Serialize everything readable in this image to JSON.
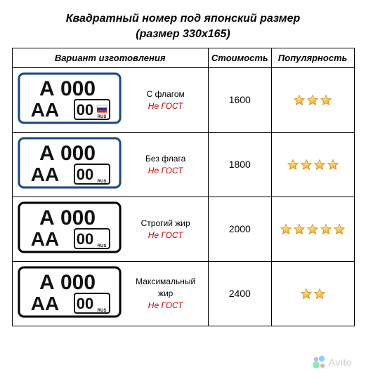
{
  "header": {
    "title": "Квадратный номер под японский размер",
    "subtitle": "(размер 330х165)"
  },
  "columns": {
    "variant": "Вариант изготовления",
    "cost": "Стоимость",
    "popularity": "Популярность"
  },
  "plate_template": {
    "top_line": "А 000",
    "bottom_left": "АА",
    "region_code": "00",
    "region_label": "RUS"
  },
  "rows": [
    {
      "desc": "С флагом",
      "sub": "Не ГОСТ",
      "cost": "1600",
      "stars": 3,
      "font_weight": 700,
      "has_flag": true,
      "border": "#1a4a8a",
      "inner_bg": "#ffffff"
    },
    {
      "desc": "Без флага",
      "sub": "Не ГОСТ",
      "cost": "1800",
      "stars": 4,
      "font_weight": 700,
      "has_flag": false,
      "border": "#1a4a8a",
      "inner_bg": "#ffffff"
    },
    {
      "desc": "Строгий жир",
      "sub": "Не ГОСТ",
      "cost": "2000",
      "stars": 5,
      "font_weight": 900,
      "has_flag": false,
      "border": "#000000",
      "inner_bg": "#ffffff"
    },
    {
      "desc": "Максимальный жир",
      "sub": "Не ГОСТ",
      "cost": "2400",
      "stars": 2,
      "font_weight": 900,
      "has_flag": false,
      "border": "#000000",
      "inner_bg": "#ffffff"
    }
  ],
  "star_style": {
    "fill": "#f5a623",
    "stroke": "#c77b00",
    "size": 18
  },
  "watermark": {
    "text": "Avito",
    "logo_colors": [
      "#965EEB",
      "#0AF",
      "#04E061",
      "#FF4053"
    ]
  }
}
